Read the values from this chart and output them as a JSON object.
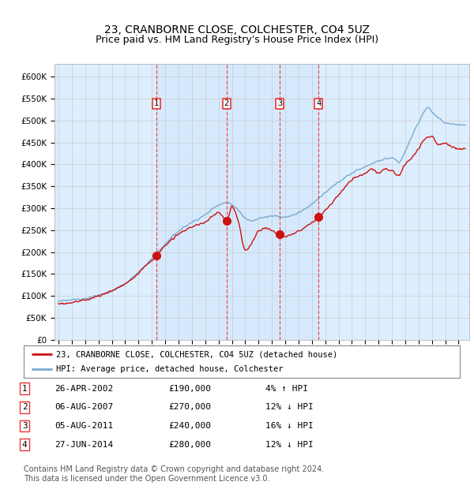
{
  "title": "23, CRANBORNE CLOSE, COLCHESTER, CO4 5UZ",
  "subtitle": "Price paid vs. HM Land Registry's House Price Index (HPI)",
  "title_fontsize": 10,
  "subtitle_fontsize": 9,
  "background_color": "#ffffff",
  "plot_bg_color": "#ddeeff",
  "grid_color": "#cccccc",
  "ylim": [
    0,
    630000
  ],
  "yticks": [
    0,
    50000,
    100000,
    150000,
    200000,
    250000,
    300000,
    350000,
    400000,
    450000,
    500000,
    550000,
    600000
  ],
  "ytick_labels": [
    "£0",
    "£50K",
    "£100K",
    "£150K",
    "£200K",
    "£250K",
    "£300K",
    "£350K",
    "£400K",
    "£450K",
    "£500K",
    "£550K",
    "£600K"
  ],
  "xlim_start": 1994.7,
  "xlim_end": 2025.8,
  "hpi_color": "#7aaad0",
  "price_color": "#cc1111",
  "marker_color": "#cc1111",
  "vline_color": "#ee3333",
  "transactions": [
    {
      "num": 1,
      "date_num": 2002.32,
      "price": 190000,
      "label": "26-APR-2002",
      "amount": "£190,000",
      "pct": "4% ↑ HPI"
    },
    {
      "num": 2,
      "date_num": 2007.6,
      "price": 270000,
      "label": "06-AUG-2007",
      "amount": "£270,000",
      "pct": "12% ↓ HPI"
    },
    {
      "num": 3,
      "date_num": 2011.6,
      "price": 240000,
      "label": "05-AUG-2011",
      "amount": "£240,000",
      "pct": "16% ↓ HPI"
    },
    {
      "num": 4,
      "date_num": 2014.49,
      "price": 280000,
      "label": "27-JUN-2014",
      "amount": "£280,000",
      "pct": "12% ↓ HPI"
    }
  ],
  "legend_entries": [
    {
      "label": "23, CRANBORNE CLOSE, COLCHESTER, CO4 5UZ (detached house)",
      "color": "#cc1111"
    },
    {
      "label": "HPI: Average price, detached house, Colchester",
      "color": "#7aaad0"
    }
  ],
  "footnote": "Contains HM Land Registry data © Crown copyright and database right 2024.\nThis data is licensed under the Open Government Licence v3.0.",
  "footnote_fontsize": 7
}
